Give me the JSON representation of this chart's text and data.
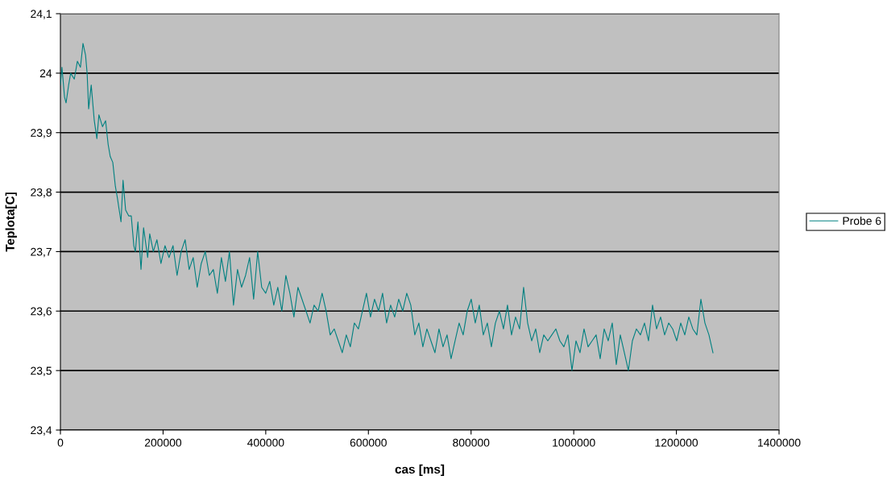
{
  "chart_data": {
    "type": "line",
    "xlabel": "cas [ms]",
    "ylabel": "Teplota[C]",
    "xlim": [
      0,
      1400000
    ],
    "xticks": [
      0,
      200000,
      400000,
      600000,
      800000,
      1000000,
      1200000,
      1400000
    ],
    "ylim": [
      23.4,
      24.1
    ],
    "yticks": [
      {
        "value": 23.4,
        "label": "23,4"
      },
      {
        "value": 23.5,
        "label": "23,5"
      },
      {
        "value": 23.6,
        "label": "23,6"
      },
      {
        "value": 23.7,
        "label": "23,7"
      },
      {
        "value": 23.8,
        "label": "23,8"
      },
      {
        "value": 23.9,
        "label": "23,9"
      },
      {
        "value": 24.0,
        "label": "24"
      },
      {
        "value": 24.1,
        "label": "24,1"
      }
    ],
    "grid": "y",
    "legend": "right",
    "marker": "none",
    "line_style": "solid",
    "series": [
      {
        "name": "Probe 6",
        "color": "#008080",
        "x": [
          0,
          3000,
          8000,
          11000,
          16000,
          20000,
          27000,
          33000,
          39000,
          44000,
          49000,
          52000,
          55000,
          60000,
          66000,
          71000,
          75000,
          82000,
          88000,
          93000,
          97000,
          102000,
          107000,
          111000,
          118000,
          122000,
          127000,
          133000,
          138000,
          143000,
          146000,
          151000,
          157000,
          162000,
          170000,
          174000,
          181000,
          188000,
          195850,
          203700,
          211550,
          219400,
          227250,
          235100,
          242950,
          250800,
          258650,
          266500,
          274350,
          282200,
          290050,
          297900,
          305750,
          313600,
          321450,
          329300,
          337150,
          345000,
          352850,
          360700,
          368550,
          376400,
          384250,
          392100,
          399950,
          407800,
          415650,
          423500,
          431350,
          439200,
          447050,
          454900,
          462750,
          470600,
          478450,
          486300,
          494150,
          502000,
          509850,
          517700,
          525550,
          533400,
          541250,
          549100,
          556950,
          564800,
          572650,
          580500,
          588350,
          596200,
          604050,
          611900,
          619750,
          627600,
          635450,
          643300,
          651150,
          659000,
          666850,
          674700,
          682550,
          690400,
          698250,
          706100,
          713950,
          721800,
          729650,
          737500,
          745350,
          753200,
          761050,
          768900,
          776750,
          784600,
          792450,
          800300,
          808150,
          816000,
          823850,
          831700,
          839550,
          847400,
          855250,
          863100,
          870950,
          878800,
          886650,
          894500,
          902350,
          910200,
          918050,
          925900,
          933750,
          941600,
          949450,
          957300,
          965150,
          973000,
          980850,
          988700,
          996550,
          1004400,
          1012250,
          1020100,
          1027950,
          1035800,
          1043650,
          1051500,
          1059350,
          1067200,
          1075050,
          1082900,
          1090750,
          1098600,
          1106450,
          1114300,
          1122150,
          1130000,
          1137850,
          1145700,
          1153550,
          1161400,
          1169250,
          1177100,
          1184950,
          1192800,
          1200650,
          1208500,
          1216350,
          1224200,
          1232050,
          1239900,
          1247750,
          1255600,
          1263450,
          1271300
        ],
        "values": [
          23.98,
          24.01,
          23.96,
          23.95,
          23.98,
          24.0,
          23.99,
          24.02,
          24.01,
          24.05,
          24.03,
          24.0,
          23.94,
          23.98,
          23.92,
          23.89,
          23.93,
          23.91,
          23.92,
          23.88,
          23.86,
          23.85,
          23.81,
          23.79,
          23.75,
          23.82,
          23.77,
          23.76,
          23.76,
          23.71,
          23.7,
          23.75,
          23.67,
          23.74,
          23.69,
          23.73,
          23.7,
          23.72,
          23.68,
          23.71,
          23.69,
          23.71,
          23.66,
          23.7,
          23.72,
          23.67,
          23.69,
          23.64,
          23.68,
          23.7,
          23.66,
          23.67,
          23.63,
          23.69,
          23.65,
          23.7,
          23.61,
          23.67,
          23.64,
          23.66,
          23.69,
          23.62,
          23.7,
          23.64,
          23.63,
          23.65,
          23.61,
          23.64,
          23.6,
          23.66,
          23.63,
          23.59,
          23.64,
          23.62,
          23.6,
          23.58,
          23.61,
          23.6,
          23.63,
          23.6,
          23.56,
          23.57,
          23.55,
          23.53,
          23.56,
          23.54,
          23.58,
          23.57,
          23.6,
          23.63,
          23.59,
          23.62,
          23.6,
          23.63,
          23.58,
          23.61,
          23.59,
          23.62,
          23.6,
          23.63,
          23.61,
          23.56,
          23.58,
          23.54,
          23.57,
          23.55,
          23.53,
          23.57,
          23.54,
          23.56,
          23.52,
          23.55,
          23.58,
          23.56,
          23.6,
          23.62,
          23.58,
          23.61,
          23.56,
          23.58,
          23.54,
          23.58,
          23.6,
          23.57,
          23.61,
          23.56,
          23.59,
          23.57,
          23.64,
          23.58,
          23.55,
          23.57,
          23.53,
          23.56,
          23.55,
          23.56,
          23.57,
          23.55,
          23.54,
          23.56,
          23.5,
          23.55,
          23.53,
          23.57,
          23.54,
          23.55,
          23.56,
          23.52,
          23.57,
          23.55,
          23.58,
          23.51,
          23.56,
          23.53,
          23.5,
          23.55,
          23.57,
          23.56,
          23.58,
          23.55,
          23.61,
          23.57,
          23.59,
          23.56,
          23.58,
          23.57,
          23.55,
          23.58,
          23.56,
          23.59,
          23.57,
          23.56,
          23.62,
          23.58,
          23.56,
          23.53
        ]
      }
    ]
  }
}
